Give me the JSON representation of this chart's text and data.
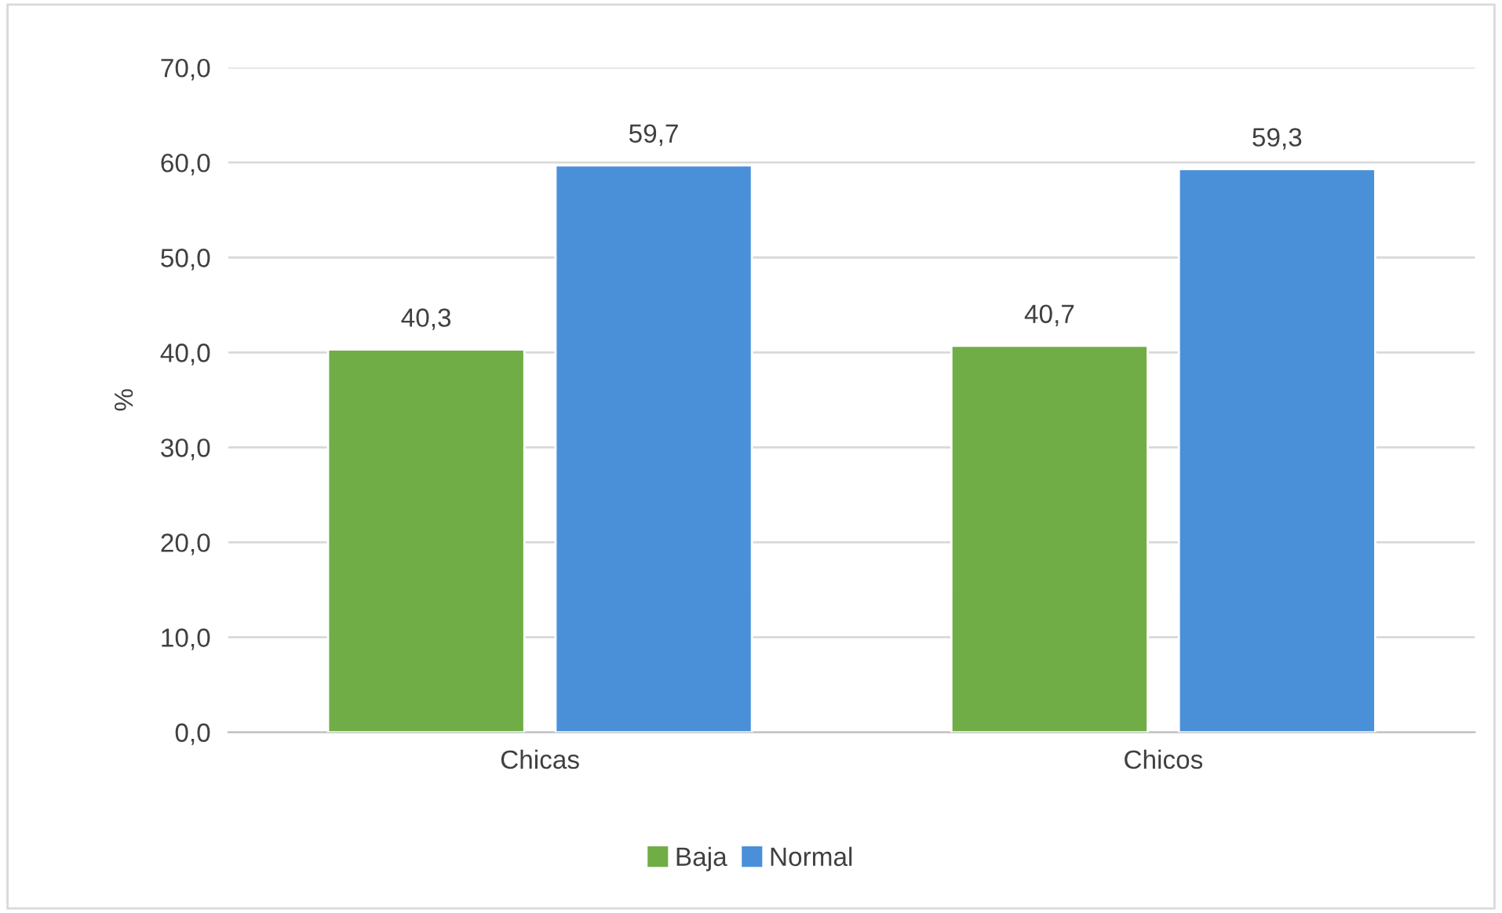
{
  "chart_data": {
    "type": "bar",
    "ylabel": "%",
    "categories": [
      "Chicas",
      "Chicos"
    ],
    "series": [
      {
        "name": "Baja",
        "color": "#70ad47",
        "values": [
          40.3,
          40.7
        ],
        "value_labels": [
          "40,3",
          "40,7"
        ]
      },
      {
        "name": "Normal",
        "color": "#4a90d9",
        "values": [
          59.7,
          59.3
        ],
        "value_labels": [
          "59,7",
          "59,3"
        ]
      }
    ],
    "ylim": [
      0,
      70
    ],
    "yticks": [
      {
        "value": 0,
        "label": "0,0"
      },
      {
        "value": 10,
        "label": "10,0"
      },
      {
        "value": 20,
        "label": "20,0"
      },
      {
        "value": 30,
        "label": "30,0"
      },
      {
        "value": 40,
        "label": "40,0"
      },
      {
        "value": 50,
        "label": "50,0"
      },
      {
        "value": 60,
        "label": "60,0"
      },
      {
        "value": 70,
        "label": "70,0"
      }
    ],
    "grid": "y",
    "legend": "bottom"
  }
}
